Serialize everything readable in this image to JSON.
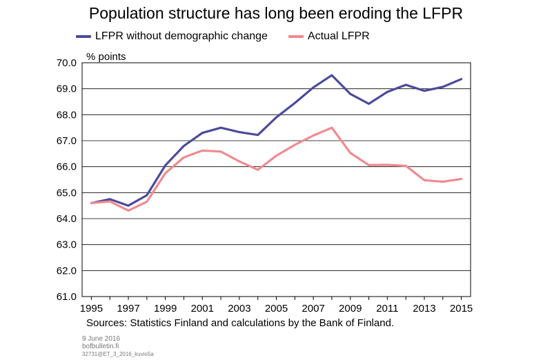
{
  "chart_data": {
    "type": "line",
    "title": "Population structure has long been eroding the LFPR",
    "ylabel": "% points",
    "xlabel": "",
    "ylim": [
      61.0,
      70.0
    ],
    "yticks": [
      "61.0",
      "62.0",
      "63.0",
      "64.0",
      "65.0",
      "66.0",
      "67.0",
      "68.0",
      "69.0",
      "70.0"
    ],
    "xlim": [
      1994.5,
      2015.5
    ],
    "xticks": [
      "1995",
      "1997",
      "1999",
      "2001",
      "2003",
      "2005",
      "2007",
      "2009",
      "2011",
      "2013",
      "2015"
    ],
    "grid": true,
    "legend": "top",
    "x": [
      1995,
      1996,
      1997,
      1998,
      1999,
      2000,
      2001,
      2002,
      2003,
      2004,
      2005,
      2006,
      2007,
      2008,
      2009,
      2010,
      2011,
      2012,
      2013,
      2014,
      2015
    ],
    "series": [
      {
        "name": "LFPR without demographic change",
        "color": "#4a4a9c",
        "values": [
          64.6,
          64.75,
          64.5,
          64.9,
          66.05,
          66.8,
          67.3,
          67.5,
          67.33,
          67.22,
          67.9,
          68.45,
          69.05,
          69.52,
          68.8,
          68.42,
          68.88,
          69.15,
          68.92,
          69.07,
          69.37
        ]
      },
      {
        "name": "Actual LFPR",
        "color": "#f08a8f",
        "values": [
          64.6,
          64.66,
          64.31,
          64.65,
          65.75,
          66.36,
          66.62,
          66.58,
          66.2,
          65.88,
          66.42,
          66.84,
          67.2,
          67.5,
          66.53,
          66.06,
          66.07,
          66.03,
          65.48,
          65.42,
          65.53
        ]
      }
    ]
  },
  "footer": {
    "source": "Sources: Statistics Finland and calculations by the Bank of Finland.",
    "date": "9 June 2016",
    "site": "bofbulletin.fi",
    "code": "32731@ET_3_2016_kuvio5a"
  }
}
